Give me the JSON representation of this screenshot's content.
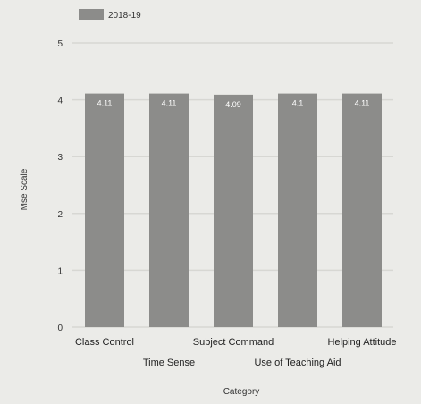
{
  "chart_data": {
    "type": "bar",
    "categories": [
      "Class Control",
      "Time Sense",
      "Subject Command",
      "Use of Teaching Aid",
      "Helping Attitude"
    ],
    "series": [
      {
        "name": "2018-19",
        "values": [
          4.11,
          4.11,
          4.09,
          4.11,
          4.11
        ]
      }
    ],
    "data_labels": [
      "4.11",
      "4.11",
      "4.09",
      "4.1",
      "4.11"
    ],
    "xlabel": "Category",
    "ylabel": "Mse Scale",
    "ylim": [
      0,
      5
    ],
    "yticks": [
      0,
      1,
      2,
      3,
      4,
      5
    ],
    "grid": true,
    "legend": "top-left",
    "colors": {
      "bar": "#8c8c8a",
      "grid": "#d7d7d3",
      "background": "#ebebe8"
    }
  }
}
